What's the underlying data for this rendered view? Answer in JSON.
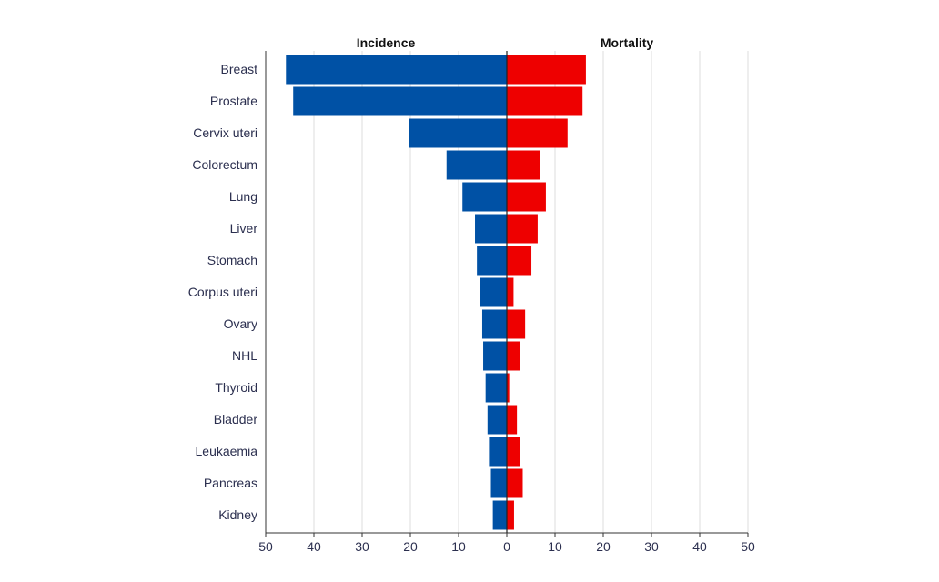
{
  "chart_data": {
    "type": "bar",
    "orientation": "horizontal-butterfly",
    "categories": [
      "Breast",
      "Prostate",
      "Cervix uteri",
      "Colorectum",
      "Lung",
      "Liver",
      "Stomach",
      "Corpus uteri",
      "Ovary",
      "NHL",
      "Thyroid",
      "Bladder",
      "Leukaemia",
      "Pancreas",
      "Kidney"
    ],
    "series": [
      {
        "name": "Incidence",
        "color": "#0051a5",
        "values": [
          45.8,
          44.3,
          20.3,
          12.5,
          9.2,
          6.6,
          6.2,
          5.5,
          5.1,
          4.9,
          4.4,
          4.0,
          3.7,
          3.3,
          2.9
        ]
      },
      {
        "name": "Mortality",
        "color": "#ee0000",
        "values": [
          16.4,
          15.7,
          12.6,
          6.9,
          8.1,
          6.4,
          5.1,
          1.4,
          3.8,
          2.8,
          0.5,
          2.1,
          2.8,
          3.3,
          1.5
        ]
      }
    ],
    "xlim": [
      0,
      50
    ],
    "ticks": [
      50,
      40,
      30,
      20,
      10,
      0,
      10,
      20,
      30,
      40,
      50
    ],
    "grid": true,
    "legend": "none"
  }
}
